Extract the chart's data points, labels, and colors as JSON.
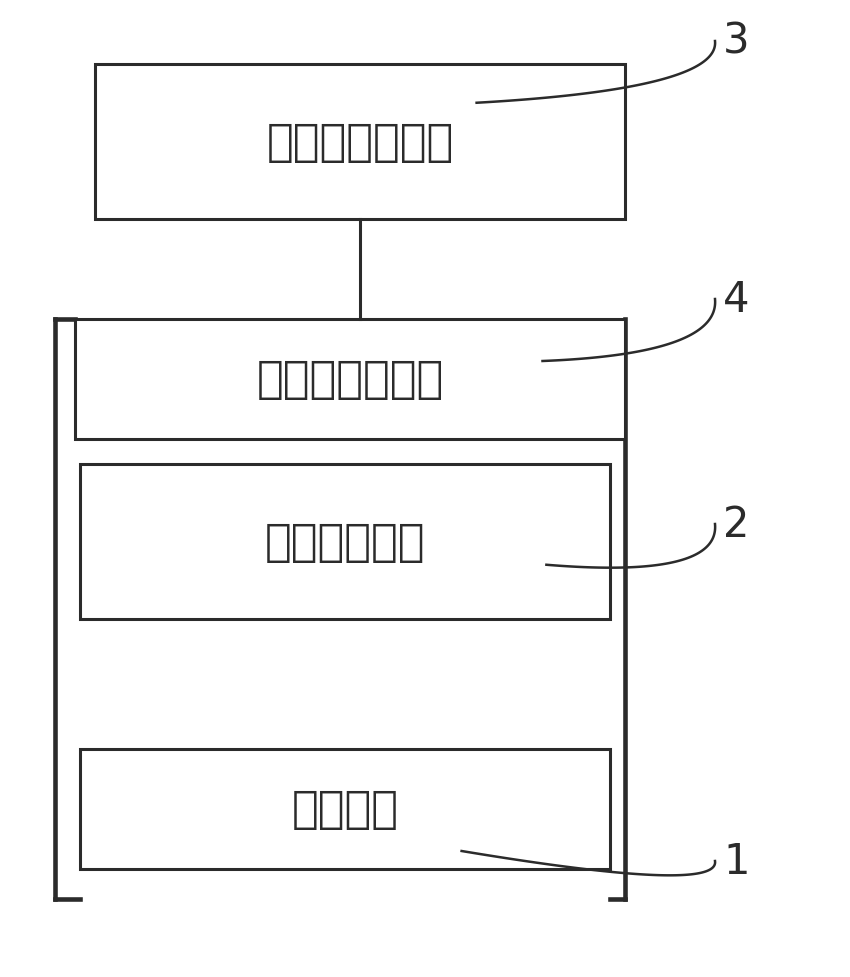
{
  "background_color": "#ffffff",
  "box1_label": "电特性测试设备",
  "box2_label": "待测半导体器件",
  "box3_label": "恒温加热设备",
  "box4_label": "脉冲电源",
  "label1": "1",
  "label2": "2",
  "label3": "3",
  "label4": "4",
  "line_color": "#2b2b2b",
  "text_color": "#2b2b2b",
  "font_size": 32,
  "label_font_size": 30
}
